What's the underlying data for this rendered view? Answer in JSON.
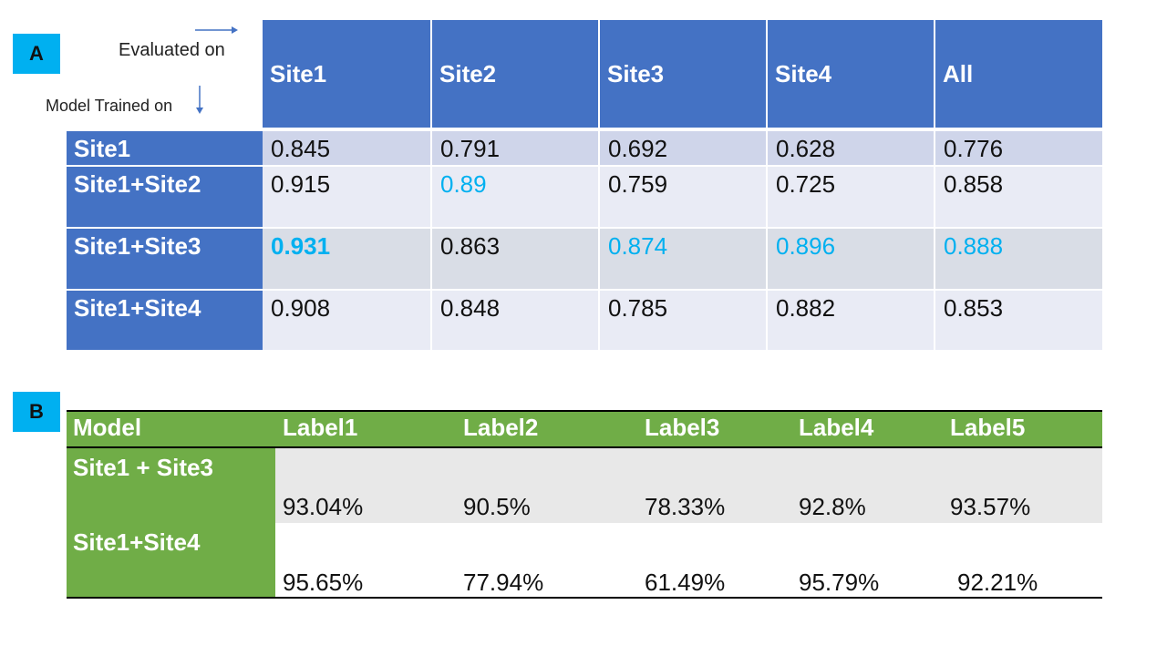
{
  "panel_a": {
    "label": "A",
    "evaluated_on": "Evaluated  on",
    "model_trained_on": "Model Trained on",
    "columns": [
      "Site1",
      "Site2",
      "Site3",
      "Site4",
      "All"
    ],
    "rows": [
      {
        "label": "Site1",
        "values": [
          "0.845",
          "0.791",
          "0.692",
          "0.628",
          "0.776"
        ]
      },
      {
        "label": "Site1+Site2",
        "values": [
          "0.915",
          "0.89",
          "0.759",
          "0.725",
          "0.858"
        ]
      },
      {
        "label": "Site1+Site3",
        "values": [
          "0.931",
          "0.863",
          "0.874",
          "0.896",
          "0.888"
        ]
      },
      {
        "label": "Site1+Site4",
        "values": [
          "0.908",
          "0.848",
          "0.785",
          "0.882",
          "0.853"
        ]
      }
    ],
    "colors": {
      "header": "#4472c4",
      "highlight": "#00b0f0"
    }
  },
  "panel_b": {
    "label": "B",
    "columns": [
      "Model",
      "Label1",
      "Label2",
      "Label3",
      "Label4",
      "Label5"
    ],
    "rows": [
      {
        "label": "Site1 + Site3",
        "values": [
          "93.04%",
          "90.5%",
          "78.33%",
          "92.8%",
          "93.57%"
        ]
      },
      {
        "label": "Site1+Site4",
        "values": [
          "95.65%",
          "77.94%",
          "61.49%",
          "95.79%",
          "92.21%"
        ]
      }
    ],
    "colors": {
      "header": "#70ad47",
      "highlight": "#00b0f0",
      "warning": "#ff0000"
    }
  }
}
